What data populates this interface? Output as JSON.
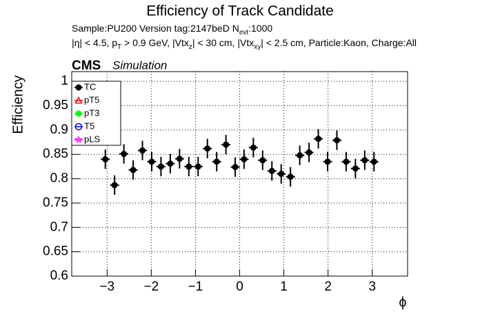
{
  "chart_data": {
    "type": "scatter",
    "title": "Efficiency of Track Candidate",
    "annotations": [
      [
        {
          "t": "Sample:PU200   Version tag:2147beD  N"
        },
        {
          "t": "evt",
          "sub": true
        },
        {
          "t": ":1000"
        }
      ],
      [
        {
          "t": "|η| < 4.5, p"
        },
        {
          "t": "T",
          "sub": true
        },
        {
          "t": " > 0.9 GeV, |Vtx"
        },
        {
          "t": "z",
          "sub": true
        },
        {
          "t": "| < 30 cm, |Vtx"
        },
        {
          "t": "xy",
          "sub": true
        },
        {
          "t": "| < 2.5 cm, Particle:Kaon, Charge:All"
        }
      ]
    ],
    "experiment": "CMS",
    "status": "Simulation",
    "xlabel": "ϕ",
    "ylabel": "Efficiency",
    "xlim": [
      -3.8,
      3.8
    ],
    "ylim": [
      0.6,
      1.02
    ],
    "xticks": [
      {
        "value": -3,
        "label": "−3"
      },
      {
        "value": -2,
        "label": "−2"
      },
      {
        "value": -1,
        "label": "−1"
      },
      0,
      1,
      2,
      3
    ],
    "yticks": [
      0.6,
      0.65,
      0.7,
      0.75,
      0.8,
      0.85,
      0.9,
      0.95,
      1
    ],
    "grid": true,
    "legend": "top-left",
    "x": [
      -3.04,
      -2.83,
      -2.62,
      -2.41,
      -2.2,
      -1.99,
      -1.78,
      -1.57,
      -1.36,
      -1.15,
      -0.94,
      -0.73,
      -0.52,
      -0.31,
      -0.1,
      0.1,
      0.31,
      0.52,
      0.73,
      0.94,
      1.15,
      1.36,
      1.57,
      1.78,
      1.99,
      2.2,
      2.41,
      2.62,
      2.83,
      3.04
    ],
    "series": [
      {
        "name": "TC",
        "color": "#000000",
        "marker": "circle",
        "values": [
          0.84,
          0.787,
          0.851,
          0.818,
          0.858,
          0.835,
          0.825,
          0.831,
          0.841,
          0.825,
          0.825,
          0.862,
          0.835,
          0.87,
          0.824,
          0.84,
          0.864,
          0.838,
          0.816,
          0.81,
          0.804,
          0.848,
          0.854,
          0.882,
          0.835,
          0.879,
          0.835,
          0.821,
          0.838,
          0.835
        ],
        "errors": [
          0.02,
          0.02,
          0.02,
          0.02,
          0.02,
          0.02,
          0.02,
          0.02,
          0.02,
          0.02,
          0.02,
          0.02,
          0.02,
          0.02,
          0.02,
          0.02,
          0.02,
          0.02,
          0.02,
          0.02,
          0.02,
          0.02,
          0.02,
          0.02,
          0.02,
          0.02,
          0.02,
          0.02,
          0.02,
          0.02
        ]
      },
      {
        "name": "pT5",
        "color": "#ff0000",
        "marker": "triangle-open"
      },
      {
        "name": "pT3",
        "color": "#00ff00",
        "marker": "circle"
      },
      {
        "name": "T5",
        "color": "#0000ff",
        "marker": "circle-open"
      },
      {
        "name": "pLS",
        "color": "#ff00ff",
        "marker": "star"
      }
    ]
  }
}
